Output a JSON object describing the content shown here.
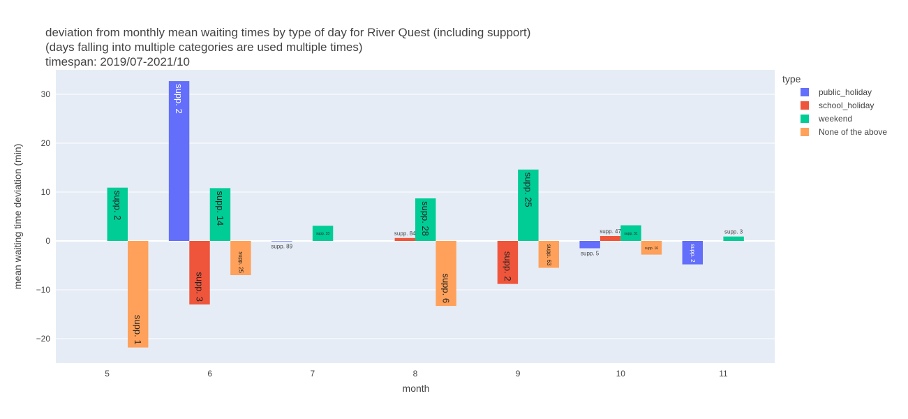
{
  "chart_data": {
    "type": "bar",
    "title_lines": [
      "deviation from monthly mean waiting times by type of day for River Quest (including support)",
      "(days falling into multiple categories are used multiple times)",
      "timespan: 2019/07-2021/10"
    ],
    "xlabel": "month",
    "ylabel": "mean waiting time deviation (min)",
    "categories": [
      "5",
      "6",
      "7",
      "8",
      "9",
      "10",
      "11"
    ],
    "ylim": [
      -25,
      35
    ],
    "yticks": [
      -20,
      -10,
      0,
      10,
      20,
      30
    ],
    "ytick_labels": [
      "−20",
      "−10",
      "0",
      "10",
      "20",
      "30"
    ],
    "grid": true,
    "legend": {
      "title": "type",
      "placement": "right"
    },
    "series": [
      {
        "name": "public_holiday",
        "color": "#636efa",
        "values": [
          null,
          32.7,
          -0.1,
          null,
          null,
          -1.5,
          -4.8
        ],
        "labels": [
          "",
          "supp. 2",
          "supp. 89",
          "",
          "",
          "supp. 5",
          "supp. 2"
        ]
      },
      {
        "name": "school_holiday",
        "color": "#ef553b",
        "values": [
          null,
          -13.0,
          null,
          0.6,
          -8.8,
          1.0,
          null
        ],
        "labels": [
          "",
          "supp. 3",
          "",
          "supp. 84",
          "supp. 2",
          "supp. 47",
          ""
        ]
      },
      {
        "name": "weekend",
        "color": "#00cc96",
        "values": [
          10.9,
          10.8,
          3.1,
          8.7,
          14.6,
          3.2,
          0.9
        ],
        "labels": [
          "supp. 2",
          "supp. 14",
          "supp. 33",
          "supp. 28",
          "supp. 25",
          "supp. 31",
          "supp. 3"
        ]
      },
      {
        "name": "None of the above",
        "color": "#ffa15a",
        "values": [
          -21.8,
          -7.0,
          null,
          -13.3,
          -5.5,
          -2.8,
          null
        ],
        "labels": [
          "supp. 1",
          "supp. 25",
          "",
          "supp. 6",
          "supp. 63",
          "supp. 16",
          ""
        ]
      }
    ],
    "colors": {
      "plot_bg": "#e5ecf6",
      "grid": "#ffffff",
      "text": "#444444"
    }
  }
}
